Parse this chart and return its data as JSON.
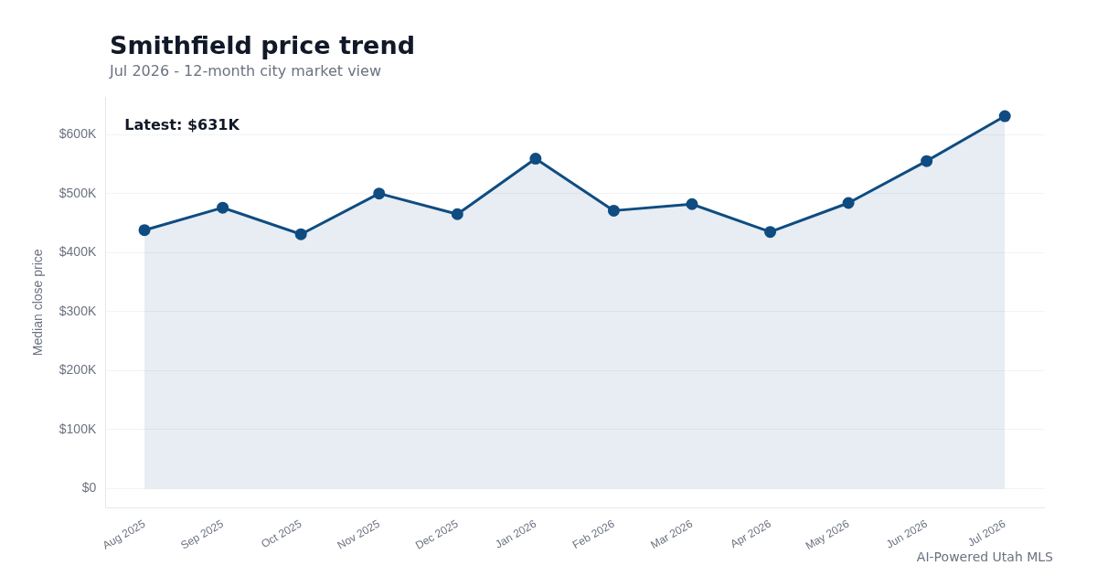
{
  "chart_data": {
    "type": "area",
    "title": "Smithfield price trend",
    "subtitle": "Jul 2026 - 12-month city market view",
    "ylabel": "Median close price",
    "categories": [
      "Aug 2025",
      "Sep 2025",
      "Oct 2025",
      "Nov 2025",
      "Dec 2025",
      "Jan 2026",
      "Feb 2026",
      "Mar 2026",
      "Apr 2026",
      "May 2026",
      "Jun 2026",
      "Jul 2026"
    ],
    "series": [
      {
        "color": "#0f4c81",
        "values": [
          438000,
          476000,
          431000,
          500000,
          465000,
          559000,
          471000,
          482000,
          435000,
          484000,
          555000,
          631000
        ]
      }
    ],
    "ylim": [
      -32000,
      663000
    ],
    "yticks": [
      {
        "value": 0,
        "label": "$0"
      },
      {
        "value": 100000,
        "label": "$100K"
      },
      {
        "value": 200000,
        "label": "$200K"
      },
      {
        "value": 300000,
        "label": "$300K"
      },
      {
        "value": 400000,
        "label": "$400K"
      },
      {
        "value": 500000,
        "label": "$500K"
      },
      {
        "value": 600000,
        "label": "$600K"
      }
    ],
    "annotations": [
      "Latest: $631K",
      "AI-Powered Utah MLS"
    ],
    "grid": "y",
    "legend": false,
    "marker": "circle",
    "line_style": "solid"
  }
}
